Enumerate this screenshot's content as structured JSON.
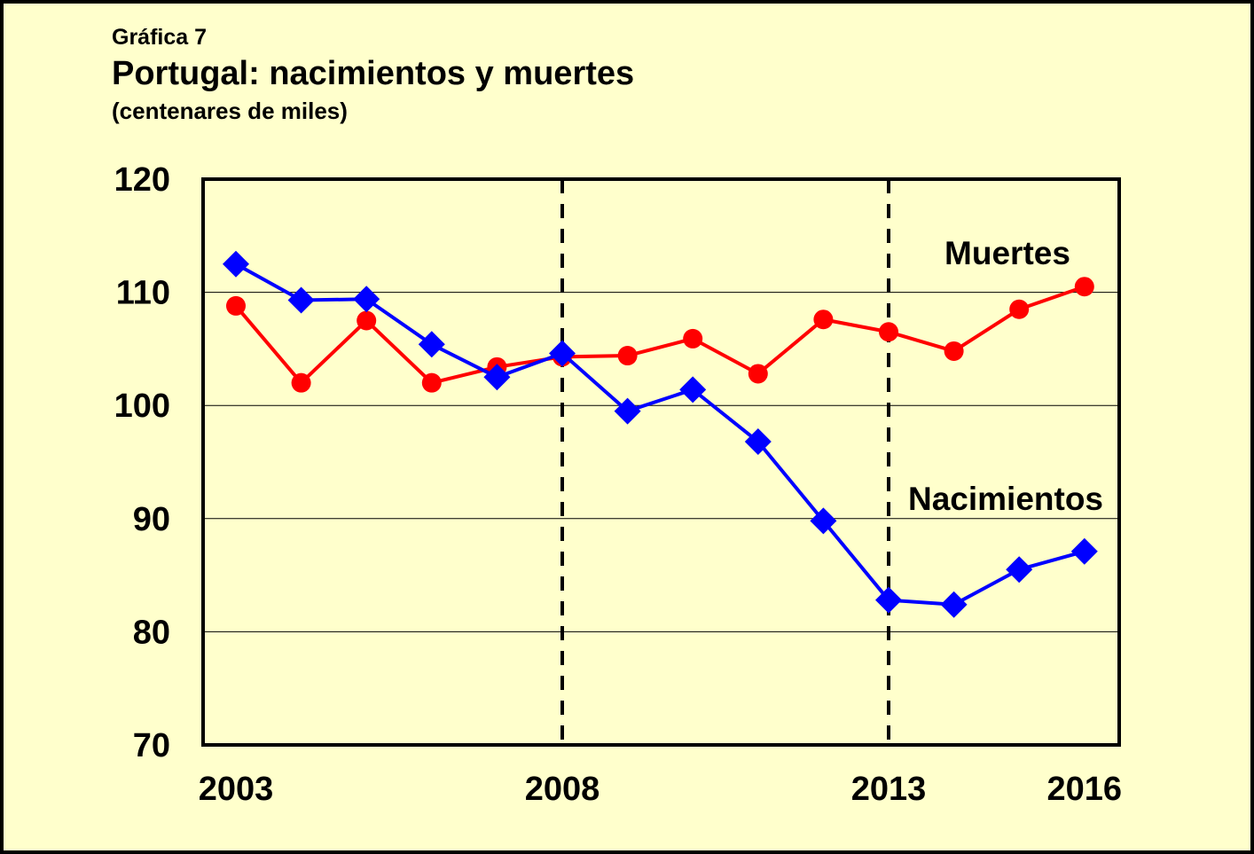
{
  "header": {
    "label": "Gráfica 7",
    "title": "Portugal: nacimientos y muertes",
    "subtitle": "(centenares de miles)"
  },
  "chart_data": {
    "type": "line",
    "x": [
      2003,
      2004,
      2005,
      2006,
      2007,
      2008,
      2009,
      2010,
      2011,
      2012,
      2013,
      2014,
      2015,
      2016
    ],
    "x_tick_labels": [
      "2003",
      "2008",
      "2013",
      "2016"
    ],
    "y_tick_labels": [
      "120",
      "110",
      "100",
      "90",
      "80",
      "70"
    ],
    "ylim": [
      70,
      120
    ],
    "grid": "horizontal",
    "reference_lines_x": [
      2008,
      2013
    ],
    "series": [
      {
        "name": "Muertes",
        "color": "#FF0000",
        "marker": "circle",
        "values": [
          108.8,
          102.0,
          107.5,
          102.0,
          103.4,
          104.3,
          104.4,
          105.9,
          102.8,
          107.6,
          106.5,
          104.8,
          108.5,
          110.5
        ]
      },
      {
        "name": "Nacimientos",
        "color": "#0000FF",
        "marker": "diamond",
        "values": [
          112.5,
          109.3,
          109.4,
          105.4,
          102.5,
          104.6,
          99.5,
          101.4,
          96.8,
          89.8,
          82.8,
          82.4,
          85.5,
          87.1
        ]
      }
    ]
  }
}
